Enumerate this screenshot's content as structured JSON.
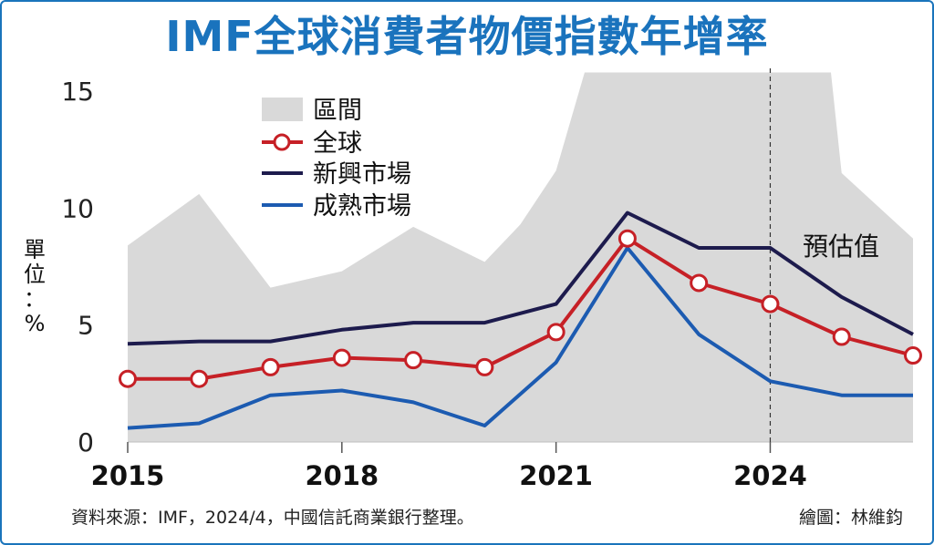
{
  "title": "IMF全球消費者物價指數年增率",
  "source": "資料來源：IMF，2024/4，中國信託商業銀行整理。",
  "credit": "繪圖：林維鈞",
  "chart_data": {
    "type": "line",
    "x": [
      2015,
      2016,
      2017,
      2018,
      2019,
      2020,
      2021,
      2022,
      2023,
      2024,
      2025,
      2026
    ],
    "x_ticks": [
      "2015",
      "2018",
      "2021",
      "2024"
    ],
    "x_tick_values": [
      2015,
      2018,
      2021,
      2024
    ],
    "y_ticks": [
      "0",
      "5",
      "10",
      "15"
    ],
    "y_tick_values": [
      0,
      5,
      10,
      15
    ],
    "ylim": [
      0,
      15
    ],
    "ylabel_chars": [
      "單",
      "位",
      "：",
      "%"
    ],
    "forecast_start": 2024,
    "forecast_label": "預估值",
    "range_band": {
      "name": "區間",
      "color": "#d9d9d9",
      "x": [
        2015,
        2016,
        2017,
        2018,
        2019,
        2020,
        2020.5,
        2021,
        2021.4,
        2022,
        2023,
        2024,
        2024.85,
        2025,
        2026
      ],
      "upper": [
        8.4,
        10.6,
        6.6,
        7.3,
        9.2,
        7.7,
        9.3,
        11.6,
        15.8,
        15.8,
        15.8,
        15.8,
        15.8,
        11.5,
        8.7
      ],
      "lower": [
        0,
        0,
        0,
        0,
        0,
        0,
        0,
        0,
        0,
        0,
        0,
        0,
        0,
        0,
        0
      ]
    },
    "series": [
      {
        "name": "全球",
        "color": "#c62026",
        "markers": true,
        "values": [
          2.7,
          2.7,
          3.2,
          3.6,
          3.5,
          3.2,
          4.7,
          8.7,
          6.8,
          5.9,
          4.5,
          3.7
        ]
      },
      {
        "name": "新興市場",
        "color": "#1d1b4d",
        "markers": false,
        "values": [
          4.2,
          4.3,
          4.3,
          4.8,
          5.1,
          5.1,
          5.9,
          9.8,
          8.3,
          8.3,
          6.2,
          4.6
        ]
      },
      {
        "name": "成熟市場",
        "color": "#1c5bb1",
        "markers": false,
        "values": [
          0.6,
          0.8,
          2.0,
          2.2,
          1.7,
          0.7,
          3.4,
          8.3,
          4.6,
          2.6,
          2.0,
          2.0
        ]
      }
    ]
  }
}
